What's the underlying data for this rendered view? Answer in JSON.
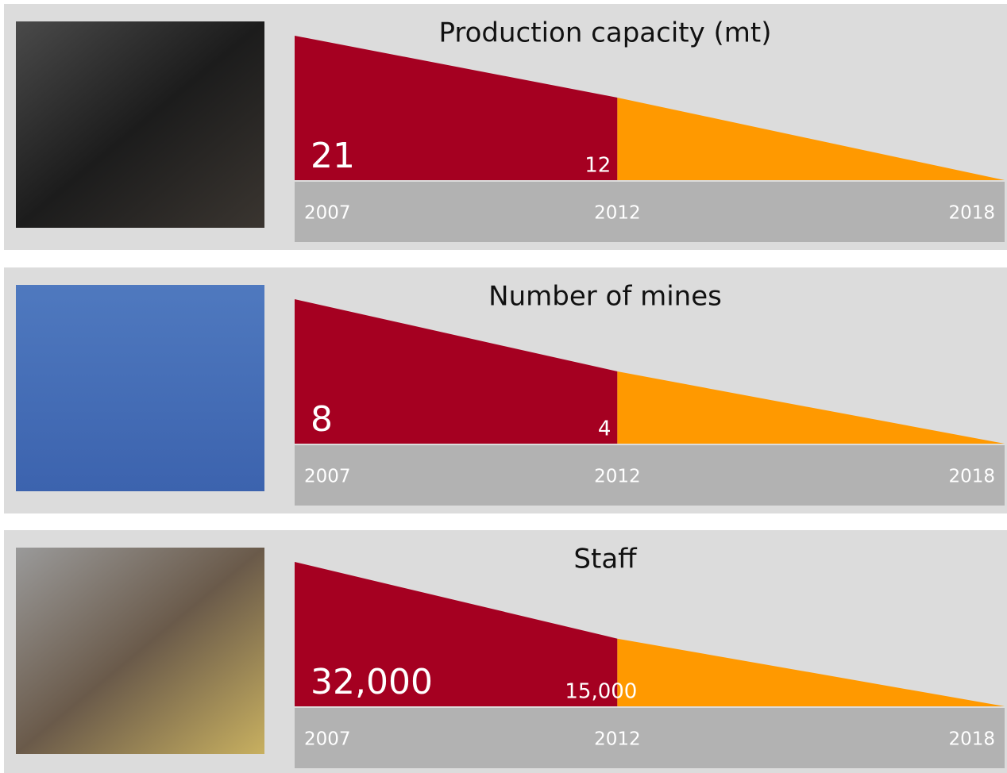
{
  "chart_data": [
    {
      "type": "area",
      "title": "Production capacity (mt)",
      "x": [
        2007,
        2012,
        2018
      ],
      "values": [
        21,
        12,
        0
      ],
      "segment_colors": [
        "#a50021",
        "#ff9900"
      ],
      "xlim": [
        2007,
        2018
      ],
      "ylim": [
        0,
        21
      ],
      "xticks": [
        2007,
        2012,
        2018
      ]
    },
    {
      "type": "area",
      "title": "Number of mines",
      "x": [
        2007,
        2012,
        2018
      ],
      "values": [
        8,
        4,
        0
      ],
      "segment_colors": [
        "#a50021",
        "#ff9900"
      ],
      "xlim": [
        2007,
        2018
      ],
      "ylim": [
        0,
        8
      ],
      "xticks": [
        2007,
        2012,
        2018
      ]
    },
    {
      "type": "area",
      "title": "Staff",
      "x": [
        2007,
        2012,
        2018
      ],
      "values": [
        32000,
        15000,
        0
      ],
      "value_labels": [
        "32,000",
        "15,000",
        null
      ],
      "segment_colors": [
        "#a50021",
        "#ff9900"
      ],
      "xlim": [
        2007,
        2018
      ],
      "ylim": [
        0,
        32000
      ],
      "xticks": [
        2007,
        2012,
        2018
      ]
    }
  ]
}
